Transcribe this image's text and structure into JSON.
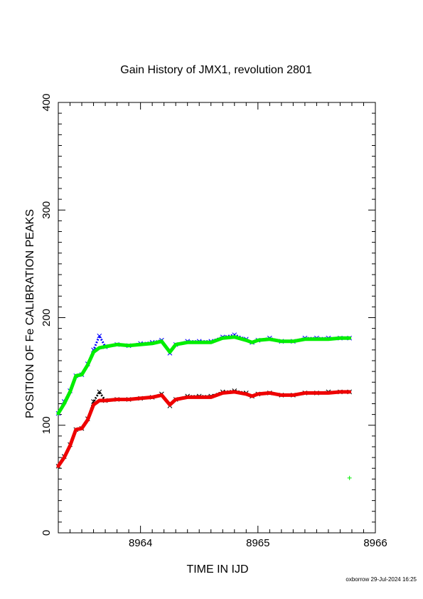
{
  "chart_data": {
    "type": "line",
    "title": "Gain History of JMX1, revolution 2801",
    "xlabel": "TIME IN IJD",
    "ylabel": "POSITION OF Fe CALIBRATION PEAKS",
    "xlim": [
      8963.3,
      8966.0
    ],
    "ylim": [
      0,
      400
    ],
    "x_ticks": [
      8964,
      8965,
      8966
    ],
    "x_tick_labels": [
      "8964",
      "8965",
      "8966"
    ],
    "y_ticks": [
      0,
      100,
      200,
      300,
      400
    ],
    "y_tick_labels": [
      "0",
      "100",
      "200",
      "300",
      "400"
    ],
    "grid": false,
    "legend": "none",
    "series": [
      {
        "color": "#0000ff",
        "marker": "x",
        "x": [
          8963.3,
          8963.35,
          8963.4,
          8963.45,
          8963.5,
          8963.55,
          8963.6,
          8963.65,
          8963.7,
          8963.8,
          8963.9,
          8964.0,
          8964.1,
          8964.18,
          8964.25,
          8964.3,
          8964.4,
          8964.5,
          8964.6,
          8964.7,
          8964.8,
          8964.9,
          8964.95,
          8965.0,
          8965.1,
          8965.2,
          8965.3,
          8965.4,
          8965.5,
          8965.6,
          8965.7,
          8965.78
        ],
        "y": [
          111,
          122,
          132,
          146,
          147,
          157,
          170,
          183,
          173,
          175,
          174,
          176,
          177,
          179,
          167,
          175,
          178,
          178,
          178,
          182,
          184,
          180,
          177,
          179,
          181,
          178,
          178,
          181,
          181,
          181,
          181,
          181
        ]
      },
      {
        "color": "#000000",
        "marker": "x",
        "x": [
          8963.3,
          8963.35,
          8963.4,
          8963.45,
          8963.5,
          8963.55,
          8963.6,
          8963.65,
          8963.7,
          8963.8,
          8963.9,
          8964.0,
          8964.1,
          8964.18,
          8964.25,
          8964.3,
          8964.4,
          8964.5,
          8964.6,
          8964.7,
          8964.8,
          8964.9,
          8964.95,
          8965.0,
          8965.1,
          8965.2,
          8965.3,
          8965.4,
          8965.5,
          8965.6,
          8965.7,
          8965.78
        ],
        "y": [
          62,
          71,
          82,
          96,
          97,
          106,
          122,
          131,
          123,
          124,
          124,
          125,
          126,
          129,
          118,
          124,
          127,
          127,
          127,
          131,
          132,
          130,
          127,
          129,
          130,
          128,
          128,
          130,
          130,
          131,
          131,
          131
        ]
      },
      {
        "color": "#00ee00",
        "marker": "line",
        "x": [
          8963.3,
          8963.35,
          8963.4,
          8963.45,
          8963.5,
          8963.55,
          8963.6,
          8963.65,
          8963.7,
          8963.8,
          8963.9,
          8964.0,
          8964.1,
          8964.18,
          8964.25,
          8964.3,
          8964.4,
          8964.5,
          8964.6,
          8964.7,
          8964.8,
          8964.9,
          8964.95,
          8965.0,
          8965.1,
          8965.2,
          8965.3,
          8965.4,
          8965.5,
          8965.6,
          8965.7,
          8965.78
        ],
        "y": [
          111,
          120,
          131,
          146,
          147,
          156,
          168,
          172,
          173,
          175,
          174,
          175,
          176,
          178,
          168,
          175,
          177,
          177,
          177,
          181,
          182,
          179,
          177,
          179,
          180,
          178,
          178,
          180,
          180,
          180,
          181,
          181
        ]
      },
      {
        "color": "#ee0000",
        "marker": "line",
        "x": [
          8963.3,
          8963.35,
          8963.4,
          8963.45,
          8963.5,
          8963.55,
          8963.6,
          8963.65,
          8963.7,
          8963.8,
          8963.9,
          8964.0,
          8964.1,
          8964.18,
          8964.25,
          8964.3,
          8964.4,
          8964.5,
          8964.6,
          8964.7,
          8964.8,
          8964.9,
          8964.95,
          8965.0,
          8965.1,
          8965.2,
          8965.3,
          8965.4,
          8965.5,
          8965.6,
          8965.7,
          8965.78
        ],
        "y": [
          62,
          70,
          81,
          96,
          97,
          105,
          119,
          123,
          123,
          124,
          124,
          125,
          126,
          128,
          119,
          124,
          126,
          126,
          126,
          130,
          131,
          129,
          127,
          129,
          130,
          128,
          128,
          130,
          130,
          130,
          131,
          131
        ]
      }
    ],
    "outlier_points": [
      {
        "x": 8965.78,
        "y": 51,
        "color": "#00ee00",
        "marker": "+"
      }
    ]
  },
  "footer": {
    "stamp": "oxborrow 29-Jul-2024 16:25"
  }
}
